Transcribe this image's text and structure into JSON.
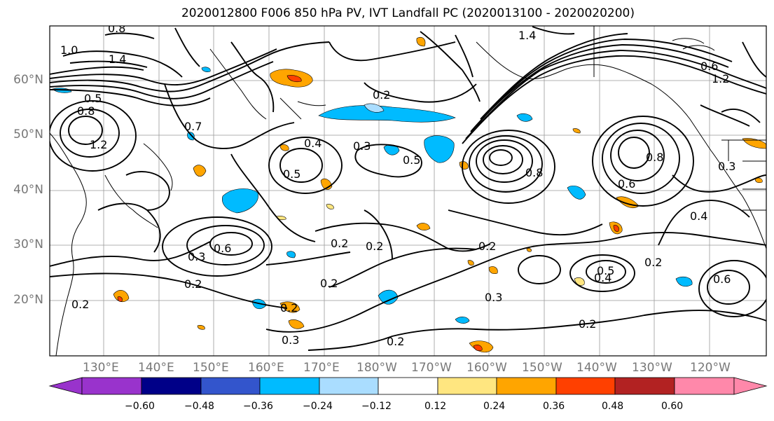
{
  "title": "2020012800 F006 850 hPa PV, IVT Landfall PC (2020013100 - 2020020200)",
  "map": {
    "lat_labels": [
      "60°N",
      "50°N",
      "40°N",
      "30°N",
      "20°N"
    ],
    "lon_labels": [
      "130°E",
      "140°E",
      "150°E",
      "160°E",
      "170°E",
      "180°W",
      "170°W",
      "160°W",
      "150°W",
      "140°W",
      "130°W",
      "120°W"
    ],
    "contour_labels": [
      "1.0",
      "1.4",
      "1.2",
      "0.8",
      "0.5",
      "1.4",
      "0.8",
      "0.2",
      "0.4",
      "0.3",
      "0.5",
      "0.2",
      "0.3",
      "0.6",
      "0.7",
      "0.2",
      "0.2",
      "0.2",
      "0.2",
      "0.3",
      "0.2",
      "0.3",
      "0.2",
      "0.2",
      "0.8",
      "0.6",
      "0.3",
      "0.2",
      "0.4",
      "0.5",
      "0.6",
      "0.2",
      "0.6",
      "0.4",
      "1.2",
      "0.5",
      "0.8"
    ]
  },
  "colorbar": {
    "ticks": [
      "−0.60",
      "−0.48",
      "−0.36",
      "−0.24",
      "−0.12",
      "0.12",
      "0.24",
      "0.36",
      "0.48",
      "0.60"
    ],
    "colors": [
      "#9933cc",
      "#000088",
      "#3355cc",
      "#00bbff",
      "#aaddff",
      "#ffffff",
      "#ffe680",
      "#ffa500",
      "#ff4000",
      "#b22222",
      "#ff88aa"
    ]
  },
  "palette": {
    "neg_blue": "#00bbff",
    "pos_orange": "#ffa500",
    "pos_red": "#ff4000"
  }
}
